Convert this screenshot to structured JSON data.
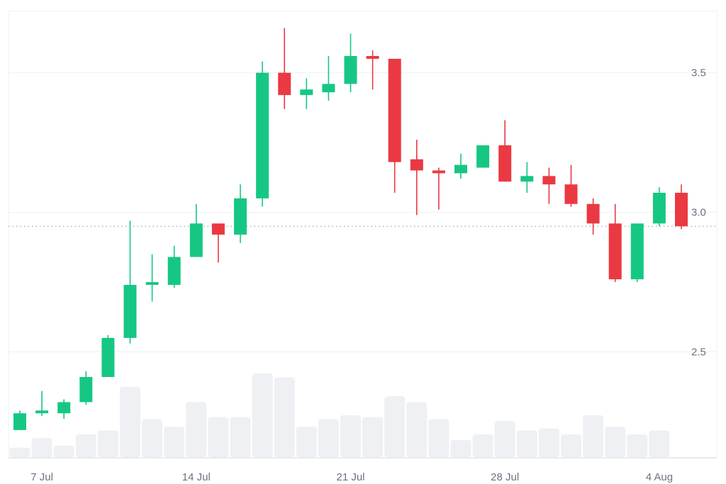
{
  "chart_data": {
    "type": "candlestick",
    "title": "",
    "xlabel": "",
    "ylabel": "",
    "ylim": [
      2.0,
      3.72
    ],
    "y_ticks": [
      2.5,
      3.0,
      3.5
    ],
    "y_tick_labels": [
      "2.5",
      "3.0",
      "3.5"
    ],
    "x_ticks": [
      {
        "label": "7 Jul",
        "day": "2024-07-07"
      },
      {
        "label": "14 Jul",
        "day": "2024-07-14"
      },
      {
        "label": "21 Jul",
        "day": "2024-07-21"
      },
      {
        "label": "28 Jul",
        "day": "2024-07-28"
      },
      {
        "label": "4 Aug",
        "day": "2024-08-04"
      }
    ],
    "reference_line": {
      "value": 2.95,
      "style": "dotted"
    },
    "grid": "horizontal",
    "colors": {
      "up": "#16c784",
      "down": "#ea3943",
      "volume": "#eef0f3",
      "grid": "#eef0f3",
      "axis": "#d1d5db",
      "ref_line": "#9ca3af",
      "text": "#6b7280"
    },
    "candles": [
      {
        "date": "2024-07-06",
        "open": 2.22,
        "high": 2.29,
        "low": 2.22,
        "close": 2.28,
        "volume": 5
      },
      {
        "date": "2024-07-07",
        "open": 2.28,
        "high": 2.36,
        "low": 2.27,
        "close": 2.29,
        "volume": 10
      },
      {
        "date": "2024-07-08",
        "open": 2.28,
        "high": 2.33,
        "low": 2.26,
        "close": 2.32,
        "volume": 6
      },
      {
        "date": "2024-07-09",
        "open": 2.32,
        "high": 2.43,
        "low": 2.31,
        "close": 2.41,
        "volume": 12
      },
      {
        "date": "2024-07-10",
        "open": 2.41,
        "high": 2.56,
        "low": 2.41,
        "close": 2.55,
        "volume": 14
      },
      {
        "date": "2024-07-11",
        "open": 2.55,
        "high": 2.97,
        "low": 2.53,
        "close": 2.74,
        "volume": 37
      },
      {
        "date": "2024-07-12",
        "open": 2.74,
        "high": 2.85,
        "low": 2.68,
        "close": 2.75,
        "volume": 20
      },
      {
        "date": "2024-07-13",
        "open": 2.74,
        "high": 2.88,
        "low": 2.73,
        "close": 2.84,
        "volume": 16
      },
      {
        "date": "2024-07-14",
        "open": 2.84,
        "high": 3.03,
        "low": 2.84,
        "close": 2.96,
        "volume": 29
      },
      {
        "date": "2024-07-15",
        "open": 2.96,
        "high": 2.96,
        "low": 2.82,
        "close": 2.92,
        "volume": 21
      },
      {
        "date": "2024-07-16",
        "open": 2.92,
        "high": 3.1,
        "low": 2.89,
        "close": 3.05,
        "volume": 21
      },
      {
        "date": "2024-07-17",
        "open": 3.05,
        "high": 3.54,
        "low": 3.02,
        "close": 3.5,
        "volume": 44
      },
      {
        "date": "2024-07-18",
        "open": 3.5,
        "high": 3.66,
        "low": 3.37,
        "close": 3.42,
        "volume": 42
      },
      {
        "date": "2024-07-19",
        "open": 3.42,
        "high": 3.48,
        "low": 3.37,
        "close": 3.44,
        "volume": 16
      },
      {
        "date": "2024-07-20",
        "open": 3.43,
        "high": 3.56,
        "low": 3.4,
        "close": 3.46,
        "volume": 20
      },
      {
        "date": "2024-07-21",
        "open": 3.46,
        "high": 3.64,
        "low": 3.43,
        "close": 3.56,
        "volume": 22
      },
      {
        "date": "2024-07-22",
        "open": 3.56,
        "high": 3.58,
        "low": 3.44,
        "close": 3.55,
        "volume": 21
      },
      {
        "date": "2024-07-23",
        "open": 3.55,
        "high": 3.55,
        "low": 3.07,
        "close": 3.18,
        "volume": 32
      },
      {
        "date": "2024-07-24",
        "open": 3.19,
        "high": 3.26,
        "low": 2.99,
        "close": 3.15,
        "volume": 29
      },
      {
        "date": "2024-07-25",
        "open": 3.15,
        "high": 3.16,
        "low": 3.01,
        "close": 3.14,
        "volume": 20
      },
      {
        "date": "2024-07-26",
        "open": 3.14,
        "high": 3.21,
        "low": 3.12,
        "close": 3.17,
        "volume": 9
      },
      {
        "date": "2024-07-27",
        "open": 3.16,
        "high": 3.24,
        "low": 3.16,
        "close": 3.24,
        "volume": 12
      },
      {
        "date": "2024-07-28",
        "open": 3.24,
        "high": 3.33,
        "low": 3.11,
        "close": 3.11,
        "volume": 19
      },
      {
        "date": "2024-07-29",
        "open": 3.11,
        "high": 3.18,
        "low": 3.07,
        "close": 3.13,
        "volume": 14
      },
      {
        "date": "2024-07-30",
        "open": 3.13,
        "high": 3.16,
        "low": 3.03,
        "close": 3.1,
        "volume": 15
      },
      {
        "date": "2024-07-31",
        "open": 3.1,
        "high": 3.17,
        "low": 3.02,
        "close": 3.03,
        "volume": 12
      },
      {
        "date": "2024-08-01",
        "open": 3.03,
        "high": 3.05,
        "low": 2.92,
        "close": 2.96,
        "volume": 22
      },
      {
        "date": "2024-08-02",
        "open": 2.96,
        "high": 3.03,
        "low": 2.75,
        "close": 2.76,
        "volume": 16
      },
      {
        "date": "2024-08-03",
        "open": 2.76,
        "high": 2.96,
        "low": 2.75,
        "close": 2.96,
        "volume": 12
      },
      {
        "date": "2024-08-04",
        "open": 2.96,
        "high": 3.09,
        "low": 2.95,
        "close": 3.07,
        "volume": 14
      },
      {
        "date": "2024-08-05",
        "open": 3.07,
        "high": 3.1,
        "low": 2.94,
        "close": 2.95,
        "volume": 0
      }
    ]
  }
}
